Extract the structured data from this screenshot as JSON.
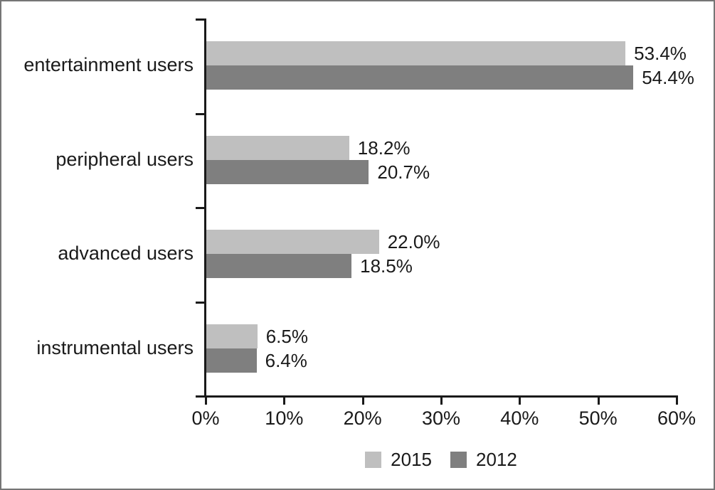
{
  "chart_data": {
    "type": "bar",
    "orientation": "horizontal",
    "title": "",
    "xlabel": "",
    "ylabel": "",
    "grid": false,
    "legend_position": "bottom",
    "categories": [
      "entertainment users",
      "peripheral users",
      "advanced users",
      "instrumental users"
    ],
    "series": [
      {
        "name": "2015",
        "color": "#bfbfbf",
        "values": [
          53.4,
          18.2,
          22.0,
          6.5
        ],
        "labels": [
          "53.4%",
          "18.2%",
          "22.0%",
          "6.5%"
        ]
      },
      {
        "name": "2012",
        "color": "#7f7f7f",
        "values": [
          54.4,
          20.7,
          18.5,
          6.4
        ],
        "labels": [
          "54.4%",
          "20.7%",
          "18.5%",
          "6.4%"
        ]
      }
    ],
    "xlim": [
      0,
      60
    ],
    "x_tick_step": 10,
    "x_tick_labels": [
      "0%",
      "10%",
      "20%",
      "30%",
      "40%",
      "50%",
      "60%"
    ],
    "axis_color": "#1a1a1a",
    "bar_colors": {
      "light": "#bfbfbf",
      "dark": "#7f7f7f"
    },
    "frame_border_color": "#757575",
    "background": "#ffffff"
  }
}
